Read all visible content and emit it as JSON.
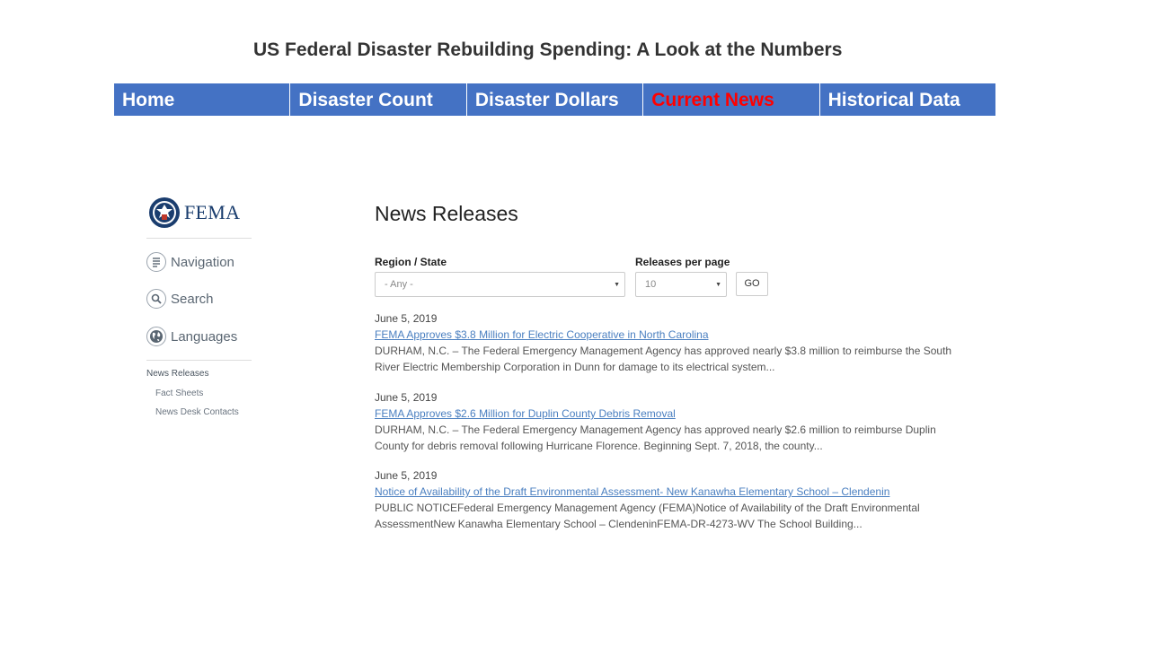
{
  "title": "US Federal Disaster Rebuilding Spending: A Look at the Numbers",
  "topnav": [
    {
      "label": "Home",
      "active": false
    },
    {
      "label": "Disaster Count",
      "active": false
    },
    {
      "label": "Disaster Dollars",
      "active": false
    },
    {
      "label": "Current News",
      "active": true
    },
    {
      "label": "Historical Data",
      "active": false
    }
  ],
  "colors": {
    "nav_bg": "#4472c4",
    "nav_text": "#ffffff",
    "nav_active": "#ff0000",
    "link": "#4a7fc0"
  },
  "fema": {
    "wordmark": "FEMA",
    "seal_icon": "dhs-seal-icon"
  },
  "sidebar": {
    "menu": [
      {
        "label": "Navigation",
        "icon": "list-icon"
      },
      {
        "label": "Search",
        "icon": "search-icon"
      },
      {
        "label": "Languages",
        "icon": "globe-icon"
      }
    ],
    "section": "News Releases",
    "sublinks": [
      "Fact Sheets",
      "News Desk Contacts"
    ]
  },
  "main": {
    "heading": "News Releases",
    "filters": {
      "region_label": "Region / State",
      "region_value": "- Any -",
      "per_page_label": "Releases per page",
      "per_page_value": "10",
      "go_label": "GO"
    },
    "releases": [
      {
        "date": "June 5, 2019",
        "title": "FEMA Approves $3.8 Million for Electric Cooperative in North Carolina",
        "summary": "DURHAM, N.C. – The Federal Emergency Management Agency has approved nearly $3.8 million to reimburse the South River Electric Membership Corporation in Dunn for damage to its electrical system..."
      },
      {
        "date": "June 5, 2019",
        "title": "FEMA Approves $2.6 Million for Duplin County Debris Removal",
        "summary": "DURHAM, N.C. – The Federal Emergency Management Agency has approved nearly $2.6 million to reimburse Duplin County for debris removal following Hurricane Florence. Beginning Sept. 7, 2018, the county..."
      },
      {
        "date": "June 5, 2019",
        "title": "Notice of Availability of the Draft Environmental Assessment- New Kanawha Elementary School – Clendenin",
        "summary": "PUBLIC NOTICEFederal Emergency Management Agency (FEMA)Notice of Availability of the Draft Environmental AssessmentNew Kanawha Elementary School – ClendeninFEMA-DR-4273-WV The School Building..."
      }
    ]
  }
}
